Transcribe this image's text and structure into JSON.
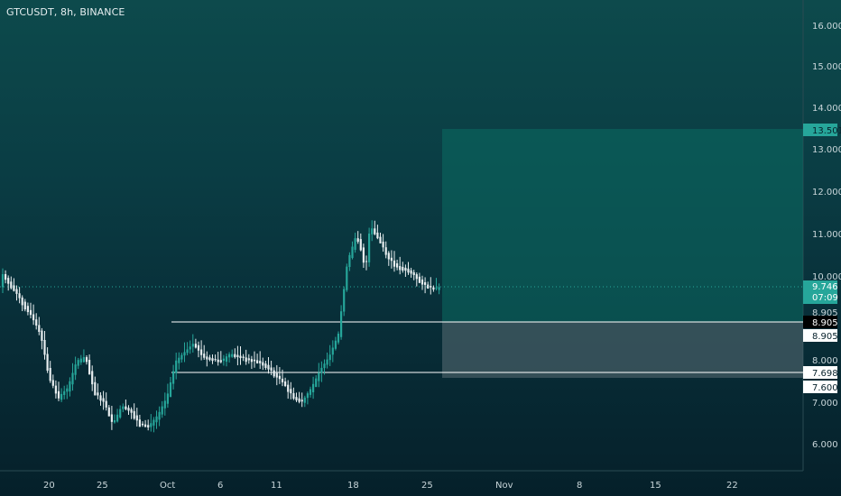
{
  "symbol_title": "GTCUSDT, 8h, BINANCE",
  "price_axis": [
    "16.000",
    "15.000",
    "14.000",
    "13.000",
    "12.000",
    "11.000",
    "10.000",
    "8.000",
    "7.000",
    "6.000"
  ],
  "time_axis": [
    "20",
    "25",
    "Oct",
    "6",
    "11",
    "18",
    "25",
    "Nov",
    "8",
    "15",
    "22"
  ],
  "tags": {
    "take_profit": "13.501",
    "current_price": "9.746",
    "countdown": "07:09",
    "level_upper_black": "8.905",
    "entry": "8.905",
    "level_lower": "7.698",
    "stop": "7.600",
    "partial_hidden": "8.905"
  },
  "colors": {
    "candle_up": "#26a69a",
    "candle_down": "#e8eef0",
    "profit_zone": "#0b6b62",
    "loss_zone": "#5a6e74",
    "current_price": "#26a69a"
  }
}
